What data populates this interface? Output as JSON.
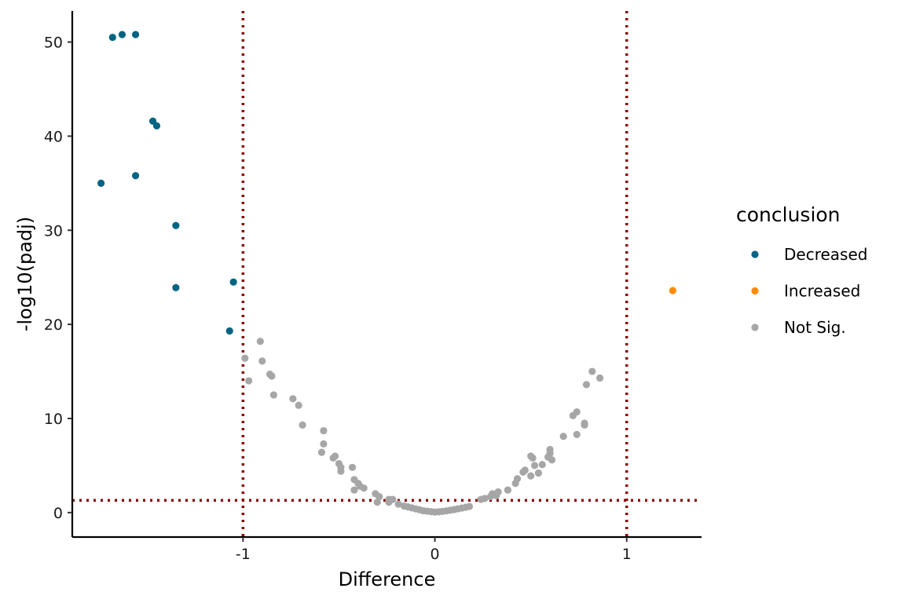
{
  "chart_data": {
    "type": "scatter",
    "title": "",
    "xlabel": "Difference",
    "ylabel": "-log10(padj)",
    "xlim": [
      -1.89,
      1.39
    ],
    "ylim": [
      -2.6,
      53.3
    ],
    "x_ticks": [
      -1,
      0,
      1
    ],
    "x_tick_labels": [
      "-1",
      "0",
      "1"
    ],
    "y_ticks": [
      0,
      10,
      20,
      30,
      40,
      50
    ],
    "y_tick_labels": [
      "0",
      "10",
      "20",
      "30",
      "40",
      "50"
    ],
    "grid": false,
    "reference_lines": {
      "vertical_x": [
        -1,
        1
      ],
      "horizontal_y": [
        1.3
      ],
      "style": "dotted",
      "color": "#8b0000"
    },
    "legend": {
      "title": "conclusion",
      "position": "right",
      "entries": [
        {
          "label": "Decreased",
          "color": "#006482"
        },
        {
          "label": "Increased",
          "color": "#ff8c00"
        },
        {
          "label": "Not Sig.",
          "color": "#a6a6a6"
        }
      ]
    },
    "series": [
      {
        "name": "Decreased",
        "color": "#006482",
        "points": [
          [
            -1.68,
            50.5
          ],
          [
            -1.63,
            50.8
          ],
          [
            -1.56,
            50.8
          ],
          [
            -1.47,
            41.6
          ],
          [
            -1.45,
            41.1
          ],
          [
            -1.56,
            35.8
          ],
          [
            -1.74,
            35.0
          ],
          [
            -1.35,
            30.5
          ],
          [
            -1.35,
            23.9
          ],
          [
            -1.05,
            24.5
          ],
          [
            -1.07,
            19.3
          ]
        ]
      },
      {
        "name": "Increased",
        "color": "#ff8c00",
        "points": [
          [
            1.24,
            23.6
          ]
        ]
      },
      {
        "name": "Not Sig.",
        "color": "#a6a6a6",
        "points": [
          [
            -0.99,
            16.4
          ],
          [
            -0.97,
            14.0
          ],
          [
            -0.91,
            18.2
          ],
          [
            -0.9,
            16.1
          ],
          [
            -0.86,
            14.7
          ],
          [
            -0.85,
            14.5
          ],
          [
            -0.84,
            12.5
          ],
          [
            -0.74,
            12.1
          ],
          [
            -0.71,
            11.4
          ],
          [
            -0.69,
            9.3
          ],
          [
            -0.58,
            8.7
          ],
          [
            -0.58,
            7.3
          ],
          [
            -0.59,
            6.4
          ],
          [
            -0.52,
            6.0
          ],
          [
            -0.53,
            5.8
          ],
          [
            -0.5,
            5.2
          ],
          [
            -0.49,
            4.8
          ],
          [
            -0.49,
            4.4
          ],
          [
            -0.43,
            4.8
          ],
          [
            -0.42,
            3.5
          ],
          [
            -0.4,
            3.1
          ],
          [
            -0.39,
            2.8
          ],
          [
            -0.37,
            2.6
          ],
          [
            -0.42,
            2.4
          ],
          [
            -0.31,
            2.0
          ],
          [
            -0.29,
            1.7
          ],
          [
            -0.24,
            1.4
          ],
          [
            -0.22,
            1.4
          ],
          [
            -0.24,
            1.1
          ],
          [
            -0.3,
            1.1
          ],
          [
            -0.19,
            0.9
          ],
          [
            -0.16,
            0.7
          ],
          [
            -0.14,
            0.6
          ],
          [
            -0.12,
            0.5
          ],
          [
            -0.1,
            0.4
          ],
          [
            -0.08,
            0.3
          ],
          [
            -0.06,
            0.2
          ],
          [
            -0.04,
            0.15
          ],
          [
            -0.02,
            0.1
          ],
          [
            0.0,
            0.05
          ],
          [
            0.02,
            0.08
          ],
          [
            0.04,
            0.12
          ],
          [
            0.06,
            0.18
          ],
          [
            0.08,
            0.25
          ],
          [
            0.1,
            0.32
          ],
          [
            0.12,
            0.4
          ],
          [
            0.14,
            0.48
          ],
          [
            0.16,
            0.56
          ],
          [
            0.18,
            0.65
          ],
          [
            0.24,
            1.4
          ],
          [
            0.26,
            1.5
          ],
          [
            0.29,
            1.7
          ],
          [
            0.3,
            2.0
          ],
          [
            0.33,
            2.2
          ],
          [
            0.32,
            1.8
          ],
          [
            0.38,
            2.4
          ],
          [
            0.42,
            3.1
          ],
          [
            0.43,
            3.6
          ],
          [
            0.46,
            4.3
          ],
          [
            0.47,
            4.5
          ],
          [
            0.5,
            3.9
          ],
          [
            0.51,
            5.8
          ],
          [
            0.5,
            6.0
          ],
          [
            0.52,
            5.0
          ],
          [
            0.54,
            4.2
          ],
          [
            0.56,
            5.1
          ],
          [
            0.59,
            5.9
          ],
          [
            0.6,
            6.3
          ],
          [
            0.61,
            5.6
          ],
          [
            0.6,
            6.7
          ],
          [
            0.67,
            8.1
          ],
          [
            0.72,
            10.3
          ],
          [
            0.74,
            10.7
          ],
          [
            0.74,
            8.3
          ],
          [
            0.78,
            9.5
          ],
          [
            0.78,
            9.3
          ],
          [
            0.79,
            13.6
          ],
          [
            0.82,
            15.0
          ],
          [
            0.86,
            14.3
          ]
        ]
      }
    ]
  }
}
